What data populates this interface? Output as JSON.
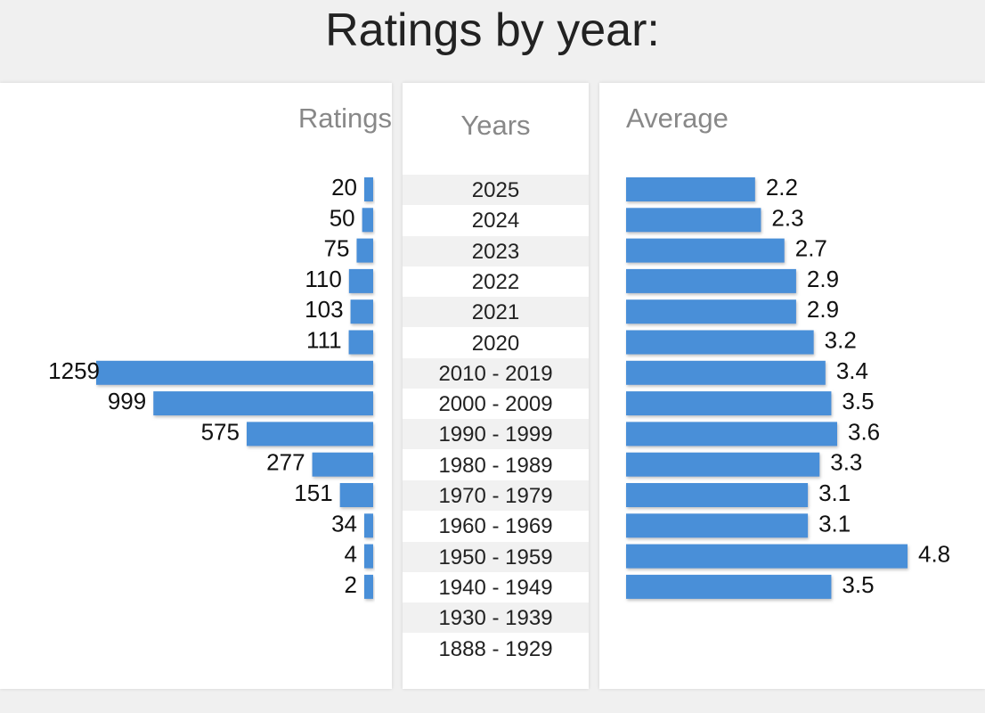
{
  "title": "Ratings by year:",
  "headers": {
    "ratings": "Ratings",
    "years": "Years",
    "average": "Average"
  },
  "colors": {
    "bar": "#4a8fd8",
    "bar_shadow": "#999999",
    "row_shade": "#f1f1f1"
  },
  "chart_data": {
    "type": "bar",
    "title": "Ratings by year:",
    "categories": [
      "2025",
      "2024",
      "2023",
      "2022",
      "2021",
      "2020",
      "2010 - 2019",
      "2000 - 2009",
      "1990 - 1999",
      "1980 - 1989",
      "1970 - 1979",
      "1960 - 1969",
      "1950 - 1959",
      "1940 - 1949",
      "1930 - 1939",
      "1888 - 1929"
    ],
    "series": [
      {
        "name": "Ratings",
        "values": [
          20,
          50,
          75,
          110,
          103,
          111,
          1259,
          999,
          575,
          277,
          151,
          34,
          4,
          2,
          null,
          null
        ],
        "labels": [
          "20",
          "50",
          "75",
          "110",
          "103",
          "111",
          "1259",
          "999",
          "575",
          "277",
          "151",
          "34",
          "4",
          "2",
          "",
          ""
        ]
      },
      {
        "name": "Average",
        "values": [
          2.2,
          2.3,
          2.7,
          2.9,
          2.9,
          3.2,
          3.4,
          3.5,
          3.6,
          3.3,
          3.1,
          3.1,
          4.8,
          3.5,
          null,
          null
        ],
        "labels": [
          "2.2",
          "2.3",
          "2.7",
          "2.9",
          "2.9",
          "3.2",
          "3.4",
          "3.5",
          "3.6",
          "3.3",
          "3.1",
          "3.1",
          "4.8",
          "3.5",
          "",
          ""
        ]
      }
    ]
  }
}
